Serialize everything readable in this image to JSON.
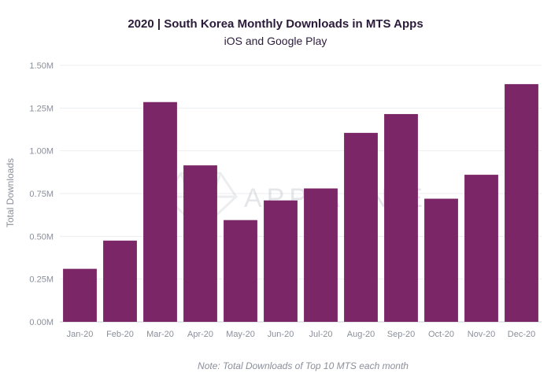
{
  "chart_data": {
    "type": "bar",
    "title": "2020 | South Korea Monthly Downloads in MTS Apps",
    "subtitle": "iOS and Google Play",
    "xlabel": "",
    "ylabel": "Total Downloads",
    "categories": [
      "Jan-20",
      "Feb-20",
      "Mar-20",
      "Apr-20",
      "May-20",
      "Jun-20",
      "Jul-20",
      "Aug-20",
      "Sep-20",
      "Oct-20",
      "Nov-20",
      "Dec-20"
    ],
    "values": [
      310000,
      475000,
      1285000,
      915000,
      595000,
      710000,
      780000,
      1105000,
      1215000,
      720000,
      860000,
      1390000
    ],
    "ylim": [
      0,
      1500000
    ],
    "yticks": [
      0,
      250000,
      500000,
      750000,
      1000000,
      1250000,
      1500000
    ],
    "ytick_labels": [
      "0.00M",
      "0.25M",
      "0.50M",
      "0.75M",
      "1.00M",
      "1.25M",
      "1.50M"
    ],
    "grid": true,
    "bar_color": "#7b2767",
    "note": "Note: Total Downloads of Top 10 MTS each month",
    "watermark": "APP ANNIE"
  }
}
